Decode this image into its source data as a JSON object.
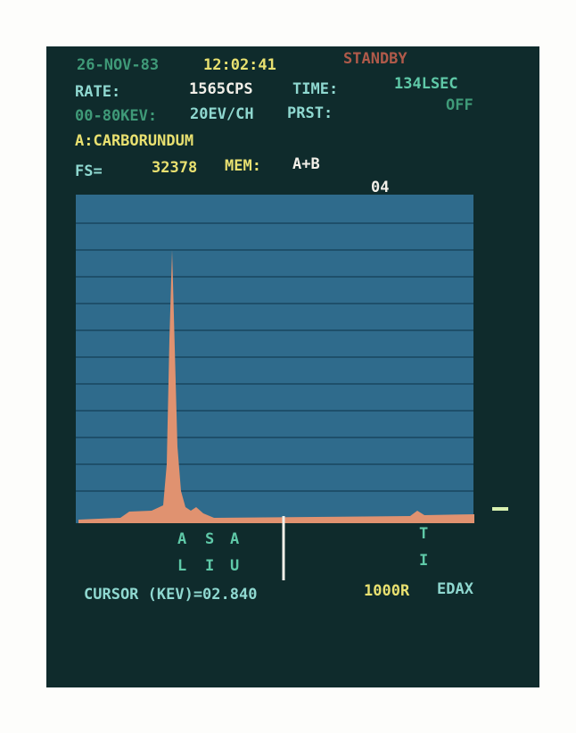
{
  "status_line": {
    "date": "26-NOV-83",
    "clock": "12:02:41",
    "mode": "STANDBY"
  },
  "rate": {
    "label": "RATE:",
    "value": "1565CPS",
    "time_label": "TIME:",
    "time_value": "134LSEC"
  },
  "range": {
    "label": "00-80KEV:",
    "scale": "20EV/CH",
    "preset_label": "PRST:",
    "preset_value": "OFF"
  },
  "sample": "A:CARBORUNDUM",
  "fs": {
    "label": "FS=",
    "value": "32378",
    "mem_label": "MEM:",
    "mem_value": "A+B"
  },
  "marker": "04",
  "elements": [
    {
      "top": "A",
      "bottom": "L"
    },
    {
      "top": "S",
      "bottom": "I"
    },
    {
      "top": "A",
      "bottom": "U"
    },
    {
      "top": "T",
      "bottom": "I"
    }
  ],
  "footer": {
    "cursor": "CURSOR (KEV)=02.840",
    "vertical_scale": "1000R",
    "brand": "EDAX"
  }
}
